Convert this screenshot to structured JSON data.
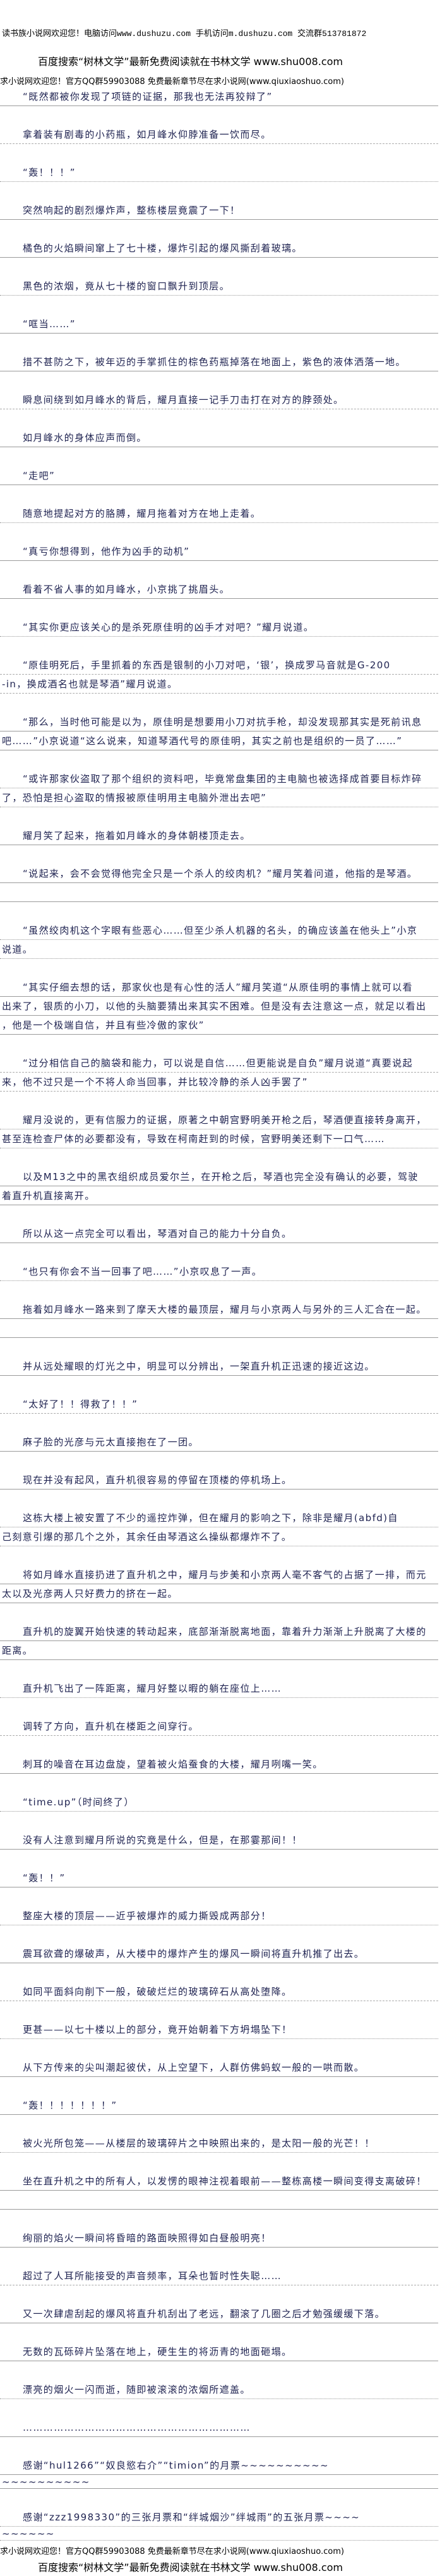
{
  "header": {
    "line1": "读书族小说网欢迎您！电脑访问www.dushuzu.com 手机访问m.dushuzu.com 交流群513781872",
    "line2": "百度搜索“树林文学”最新免费阅读就在书林文学 www.shu008.com",
    "line3": "求小说网欢迎您！官方QQ群59903088 免费最新章节尽在求小说网(www.qiuxiaoshuo.com)"
  },
  "paragraphs": [
    [
      "“既然都被你发现了项链的证据，那我也无法再狡辩了”"
    ],
    [
      "拿着装有剧毒的小药瓶，如月峰水仰脖准备一饮而尽。"
    ],
    [
      "“轰！！！”"
    ],
    [
      "突然响起的剧烈爆炸声，整栋楼层竟震了一下！"
    ],
    [
      "橘色的火焰瞬间窜上了七十楼，爆炸引起的爆风撕刮着玻璃。"
    ],
    [
      "黑色的浓烟，竟从七十楼的窗口飘升到顶层。"
    ],
    [
      "“哐当……”"
    ],
    [
      "措不甚防之下，被年迈的手掌抓住的棕色药瓶掉落在地面上，紫色的液体洒落一地。"
    ],
    [
      "瞬息间绕到如月峰水的背后，耀月直接一记手刀击打在对方的脖颈处。"
    ],
    [
      "如月峰水的身体应声而倒。"
    ],
    [
      "“走吧”"
    ],
    [
      "随意地提起对方的胳膊，耀月拖着对方在地上走着。"
    ],
    [
      "“真亏你想得到，他作为凶手的动机”"
    ],
    [
      "看着不省人事的如月峰水，小京挑了挑眉头。"
    ],
    [
      "“其实你更应该关心的是杀死原佳明的凶手才对吧？”耀月说道。"
    ],
    [
      "“原佳明死后，手里抓着的东西是银制的小刀对吧，‘银’，换成罗马音就是G-200",
      "-in，换成酒名也就是琴酒”耀月说道。"
    ],
    [
      "“那么，当时他可能是以为，原佳明是想要用小刀对抗手枪，却没发现那其实是死前讯息",
      "吧……”小京说道“这么说来，知道琴酒代号的原佳明，其实之前也是组织的一员了……”"
    ],
    [
      "“或许那家伙盗取了那个组织的资料吧，毕竟常盘集团的主电脑也被选择成首要目标炸碎",
      "了，恐怕是担心盗取的情报被原佳明用主电脑外泄出去吧”"
    ],
    [
      "耀月笑了起来，拖着如月峰水的身体朝楼顶走去。"
    ],
    [
      "“说起来，会不会觉得他完全只是一个杀人的绞肉机？”耀月笑着问道，他指的是琴酒。",
      ""
    ],
    [
      "“虽然绞肉机这个字眼有些恶心……但至少杀人机器的名头，的确应该盖在他头上”小京",
      "说道。"
    ],
    [
      "“其实仔细去想的话，那家伙也是有心性的活人”耀月笑道“从原佳明的事情上就可以看",
      "出来了，银质的小刀，以他的头脑要猜出来其实不困难。但是没有去注意这一点，就足以看出",
      "，他是一个极端自信，并且有些冷傲的家伙”"
    ],
    [
      "“过分相信自己的脑袋和能力，可以说是自信……但更能说是自负”耀月说道“真要说起",
      "来，他不过只是一个不将人命当回事，并比较冷静的杀人凶手罢了”"
    ],
    [
      "耀月没说的，更有信服力的证据，原著之中朝宫野明美开枪之后，琴酒便直接转身离开，",
      "甚至连检查尸体的必要都没有，导致在柯南赶到的时候，宫野明美还剩下一口气……"
    ],
    [
      "以及M13之中的黑衣组织成员爱尔兰，在开枪之后，琴酒也完全没有确认的必要，驾驶",
      "着直升机直接离开。"
    ],
    [
      "所以从这一点完全可以看出，琴酒对自己的能力十分自负。"
    ],
    [
      "“也只有你会不当一回事了吧……”小京叹息了一声。"
    ],
    [
      "拖着如月峰水一路来到了摩天大楼的最顶层，耀月与小京两人与另外的三人汇合在一起。",
      ""
    ],
    [
      "并从远处耀眼的灯光之中，明显可以分辨出，一架直升机正迅速的接近这边。"
    ],
    [
      "“太好了！！得救了！！”"
    ],
    [
      "麻子脸的光彦与元太直接抱在了一团。"
    ],
    [
      "现在并没有起风，直升机很容易的停留在顶楼的停机场上。"
    ],
    [
      "这栋大楼上被安置了不少的遥控炸弹，但在耀月的影响之下，除非是耀月(abfd)自",
      "己刻意引爆的那几个之外，其余任由琴酒这么操纵都爆炸不了。"
    ],
    [
      "将如月峰水直接扔进了直升机之中，耀月与步美和小京两人毫不客气的占据了一排，而元",
      "太以及光彦两人只好费力的挤在一起。"
    ],
    [
      "直升机的旋翼开始快速的转动起来，底部渐渐脱离地面，靠着升力渐渐上升脱离了大楼的",
      "距离。"
    ],
    [
      "直升机飞出了一阵距离，耀月好整以暇的躺在座位上……"
    ],
    [
      "调转了方向，直升机在楼距之间穿行。"
    ],
    [
      "刺耳的噪音在耳边盘旋，望着被火焰蚕食的大楼，耀月咧嘴一笑。"
    ],
    [
      "“time.up”（时间终了）"
    ],
    [
      "没有人注意到耀月所说的究竟是什么，但是，在那霎那间！！"
    ],
    [
      "“轰！！”"
    ],
    [
      "整座大楼的顶层——近乎被爆炸的威力撕毁成两部分！"
    ],
    [
      "震耳欲聋的爆破声，从大楼中的爆炸产生的爆风一瞬间将直升机推了出去。"
    ],
    [
      "如同平面斜向削下一般，破破烂烂的玻璃碎石从高处堕降。"
    ],
    [
      "更甚——以七十楼以上的部分，竟开始朝着下方坍塌坠下！"
    ],
    [
      "从下方传来的尖叫潮起彼伏，从上空望下，人群仿佛蚂蚁一般的一哄而散。"
    ],
    [
      "“轰！！！！！！！”"
    ],
    [
      "被火光所包笼——从楼层的玻璃碎片之中映照出来的，是太阳一般的光芒！！"
    ],
    [
      "坐在直升机之中的所有人，以发愣的眼神注视着眼前——整栋高楼一瞬间变得支离破碎！",
      ""
    ],
    [
      "绚丽的焰火一瞬间将昏暗的路面映照得如白昼般明亮！"
    ],
    [
      "超过了人耳所能接受的声音频率，耳朵也暂时性失聪……"
    ],
    [
      "又一次肆虐刮起的爆风将直升机刮出了老远，翻滚了几圈之后才勉强缓缓下落。"
    ],
    [
      "无数的瓦砾碎片坠落在地上，硬生生的将沥青的地面砸塌。"
    ],
    [
      "漂亮的烟火一闪而逝，随即被滚滚的浓烟所遮盖。"
    ],
    [
      "…………………………………………………………"
    ],
    [
      "感谢“hul1266”“奴良慾右介”“timion”的月票~~~~~~~~~~",
      "~~~~~~~~~~"
    ],
    [
      "感谢“zzz1998330”的三张月票和“绊城烟沙”绊城雨”的五张月票~~~~",
      "~~~~~~"
    ]
  ],
  "footer": {
    "line1": "求小说网欢迎您！官方QQ群59903088 免费最新章节尽在求小说网(www.qiuxiaoshuo.com)",
    "line2": "百度搜索“树林文学”最新免费阅读就在书林文学 www.shu008.com"
  },
  "colors": {
    "text": "#1e2250",
    "header": "#000000",
    "rule": "#9a9a9a"
  }
}
